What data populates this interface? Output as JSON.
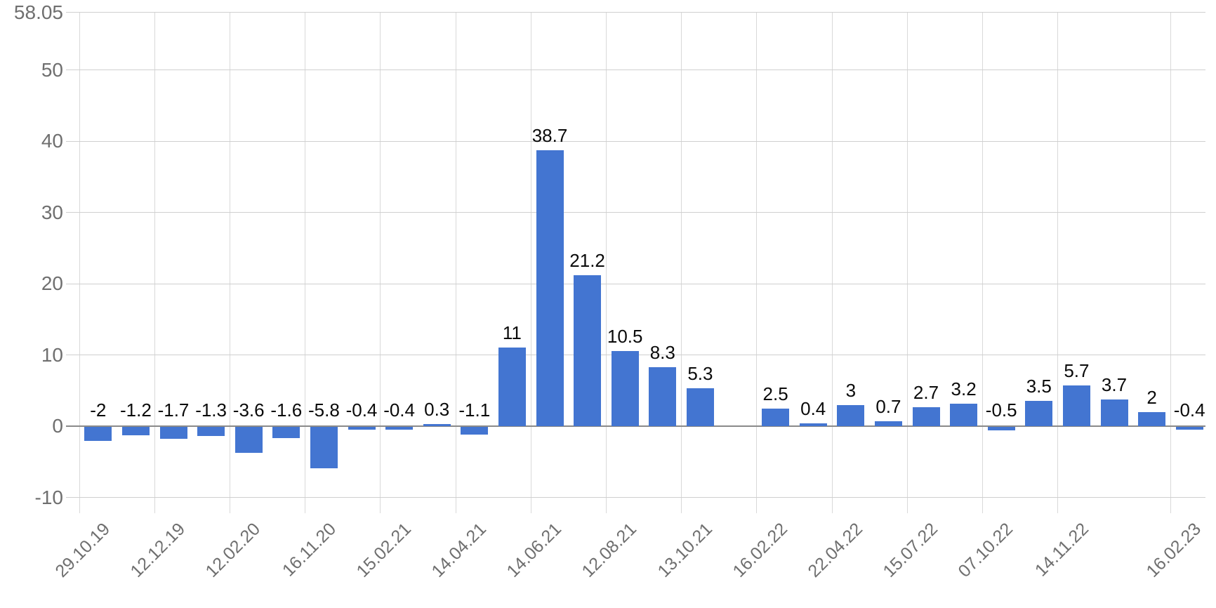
{
  "chart_data": {
    "type": "bar",
    "title": "",
    "xlabel": "",
    "ylabel": "",
    "legend": "none",
    "grid": "on",
    "ylim": [
      -10,
      58.05
    ],
    "y_ticks": [
      {
        "value": 58.05,
        "label": "58.05"
      },
      {
        "value": 50,
        "label": "50"
      },
      {
        "value": 40,
        "label": "40"
      },
      {
        "value": 30,
        "label": "30"
      },
      {
        "value": 20,
        "label": "20"
      },
      {
        "value": 10,
        "label": "10"
      },
      {
        "value": 0,
        "label": "0"
      },
      {
        "value": -10,
        "label": "-10"
      }
    ],
    "x_tick_labels": [
      "29.10.19",
      "12.12.19",
      "12.02.20",
      "16.11.20",
      "15.02.21",
      "14.04.21",
      "14.06.21",
      "12.08.21",
      "13.10.21",
      "16.02.22",
      "22.04.22",
      "15.07.22",
      "07.10.22",
      "14.11.22",
      "16.02.23"
    ],
    "x_tick_slot_boundaries": [
      0,
      2,
      4,
      6,
      8,
      10,
      12,
      14,
      16,
      18,
      20,
      22,
      24,
      26,
      29
    ],
    "slot_count": 30,
    "empty_slot_index": 17,
    "values": [
      -2,
      -1.2,
      -1.7,
      -1.3,
      -3.6,
      -1.6,
      -5.8,
      -0.4,
      -0.4,
      0.3,
      -1.1,
      11,
      38.7,
      21.2,
      10.5,
      8.3,
      5.3,
      2.5,
      0.4,
      3,
      0.7,
      2.7,
      3.2,
      -0.5,
      3.5,
      5.7,
      3.7,
      2,
      -0.4
    ],
    "value_labels": [
      "-2",
      "-1.2",
      "-1.7",
      "-1.3",
      "-3.6",
      "-1.6",
      "-5.8",
      "-0.4",
      "-0.4",
      "0.3",
      "-1.1",
      "11",
      "38.7",
      "21.2",
      "10.5",
      "8.3",
      "5.3",
      "2.5",
      "0.4",
      "3",
      "0.7",
      "2.7",
      "3.2",
      "-0.5",
      "3.5",
      "5.7",
      "3.7",
      "2",
      "-0.4"
    ],
    "bar_slots": [
      0,
      1,
      2,
      3,
      4,
      5,
      6,
      7,
      8,
      9,
      10,
      11,
      12,
      13,
      14,
      15,
      16,
      18,
      19,
      20,
      21,
      22,
      23,
      24,
      25,
      26,
      27,
      28,
      29
    ],
    "colors": {
      "bar": "#4375d1",
      "gridline": "#cfcfcf",
      "zero_line": "#8a8a8a",
      "axis_text": "#6f6f6f",
      "value_text": "#0a0a0a",
      "background": "#ffffff"
    }
  }
}
